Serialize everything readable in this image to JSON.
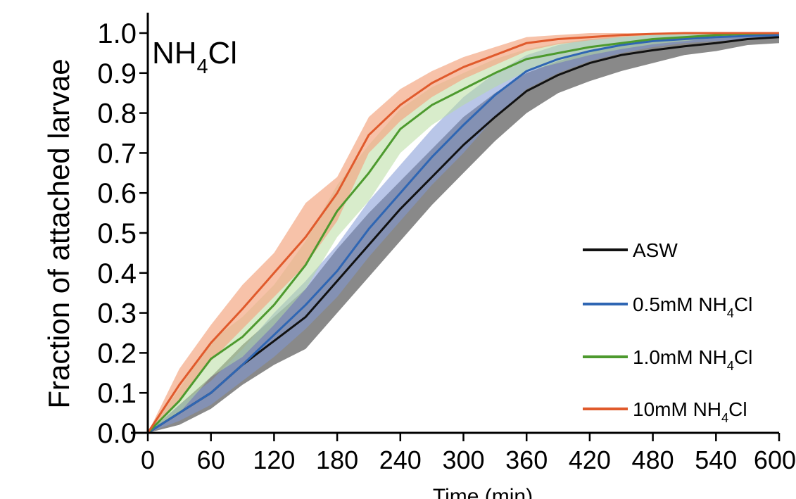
{
  "chart_data": {
    "type": "line",
    "title": "NH",
    "title_subscript": "4",
    "title_suffix": "Cl",
    "xlabel": "Time (min)",
    "ylabel": "Fraction of attached  larvae",
    "xlim": [
      0,
      600
    ],
    "ylim": [
      0.0,
      1.0
    ],
    "xticks": [
      "0",
      "60",
      "120",
      "180",
      "240",
      "300",
      "360",
      "420",
      "480",
      "540",
      "600"
    ],
    "yticks": [
      "0.0",
      "0.1",
      "0.2",
      "0.3",
      "0.4",
      "0.5",
      "0.6",
      "0.7",
      "0.8",
      "0.9",
      "1.0"
    ],
    "legend_position": "right",
    "x": [
      0,
      30,
      60,
      90,
      120,
      150,
      180,
      210,
      240,
      270,
      300,
      330,
      360,
      390,
      420,
      450,
      480,
      510,
      540,
      570,
      600
    ],
    "series": [
      {
        "name": "ASW",
        "label_main": "ASW",
        "label_sub": "",
        "label_suffix": "",
        "color": "#111111",
        "band_color": "#4a4a4a",
        "band_opacity": 0.65,
        "values": [
          0.0,
          0.05,
          0.1,
          0.17,
          0.23,
          0.29,
          0.38,
          0.47,
          0.56,
          0.64,
          0.72,
          0.79,
          0.855,
          0.895,
          0.925,
          0.945,
          0.957,
          0.967,
          0.975,
          0.985,
          0.99
        ],
        "lower": [
          0.0,
          0.02,
          0.06,
          0.12,
          0.17,
          0.21,
          0.3,
          0.39,
          0.48,
          0.57,
          0.65,
          0.73,
          0.8,
          0.85,
          0.88,
          0.905,
          0.925,
          0.945,
          0.955,
          0.97,
          0.975
        ],
        "upper": [
          0.0,
          0.07,
          0.14,
          0.22,
          0.29,
          0.36,
          0.46,
          0.55,
          0.63,
          0.71,
          0.79,
          0.85,
          0.9,
          0.93,
          0.955,
          0.975,
          0.985,
          0.99,
          0.993,
          0.996,
          1.0
        ]
      },
      {
        "name": "0.5mM NH4Cl",
        "label_main": "0.5mM NH",
        "label_sub": "4",
        "label_suffix": "Cl",
        "color": "#2f66b3",
        "band_color": "#7f98d6",
        "band_opacity": 0.55,
        "values": [
          0.0,
          0.05,
          0.1,
          0.17,
          0.245,
          0.32,
          0.405,
          0.51,
          0.6,
          0.69,
          0.77,
          0.845,
          0.905,
          0.935,
          0.955,
          0.97,
          0.98,
          0.985,
          0.99,
          0.993,
          0.995
        ],
        "lower": [
          0.0,
          0.03,
          0.07,
          0.13,
          0.19,
          0.26,
          0.34,
          0.44,
          0.53,
          0.62,
          0.7,
          0.79,
          0.86,
          0.9,
          0.93,
          0.95,
          0.965,
          0.975,
          0.98,
          0.985,
          0.99
        ],
        "upper": [
          0.0,
          0.07,
          0.13,
          0.21,
          0.3,
          0.38,
          0.47,
          0.58,
          0.67,
          0.76,
          0.84,
          0.9,
          0.945,
          0.97,
          0.985,
          0.99,
          0.995,
          0.997,
          0.998,
          0.999,
          1.0
        ]
      },
      {
        "name": "1.0mM NH4Cl",
        "label_main": "1.0mM NH",
        "label_sub": "4",
        "label_suffix": "Cl",
        "color": "#4d9a2e",
        "band_color": "#b8dca0",
        "band_opacity": 0.55,
        "values": [
          0.0,
          0.08,
          0.185,
          0.24,
          0.32,
          0.42,
          0.555,
          0.65,
          0.76,
          0.82,
          0.86,
          0.9,
          0.935,
          0.95,
          0.965,
          0.975,
          0.985,
          0.99,
          0.995,
          0.998,
          1.0
        ],
        "lower": [
          0.0,
          0.05,
          0.14,
          0.19,
          0.27,
          0.36,
          0.49,
          0.58,
          0.7,
          0.77,
          0.82,
          0.865,
          0.905,
          0.925,
          0.945,
          0.96,
          0.972,
          0.98,
          0.988,
          0.993,
          0.997
        ],
        "upper": [
          0.0,
          0.11,
          0.23,
          0.29,
          0.37,
          0.48,
          0.62,
          0.72,
          0.81,
          0.865,
          0.9,
          0.935,
          0.96,
          0.975,
          0.985,
          0.992,
          0.996,
          0.998,
          0.999,
          1.0,
          1.0
        ]
      },
      {
        "name": "10mM NH4Cl",
        "label_main": "10mM NH",
        "label_sub": "4",
        "label_suffix": "Cl",
        "color": "#e05a2c",
        "band_color": "#f3a884",
        "band_opacity": 0.7,
        "values": [
          0.0,
          0.12,
          0.225,
          0.31,
          0.4,
          0.49,
          0.6,
          0.745,
          0.82,
          0.875,
          0.915,
          0.945,
          0.975,
          0.985,
          0.99,
          0.995,
          0.998,
          1.0,
          1.0,
          1.0,
          1.0
        ],
        "lower": [
          0.0,
          0.08,
          0.18,
          0.26,
          0.34,
          0.42,
          0.53,
          0.7,
          0.78,
          0.84,
          0.885,
          0.92,
          0.955,
          0.972,
          0.982,
          0.99,
          0.995,
          0.998,
          1.0,
          1.0,
          1.0
        ],
        "upper": [
          0.0,
          0.16,
          0.27,
          0.37,
          0.45,
          0.575,
          0.64,
          0.79,
          0.86,
          0.905,
          0.94,
          0.965,
          0.99,
          0.995,
          1.0,
          1.0,
          1.0,
          1.0,
          1.0,
          1.0,
          1.0
        ]
      }
    ]
  }
}
